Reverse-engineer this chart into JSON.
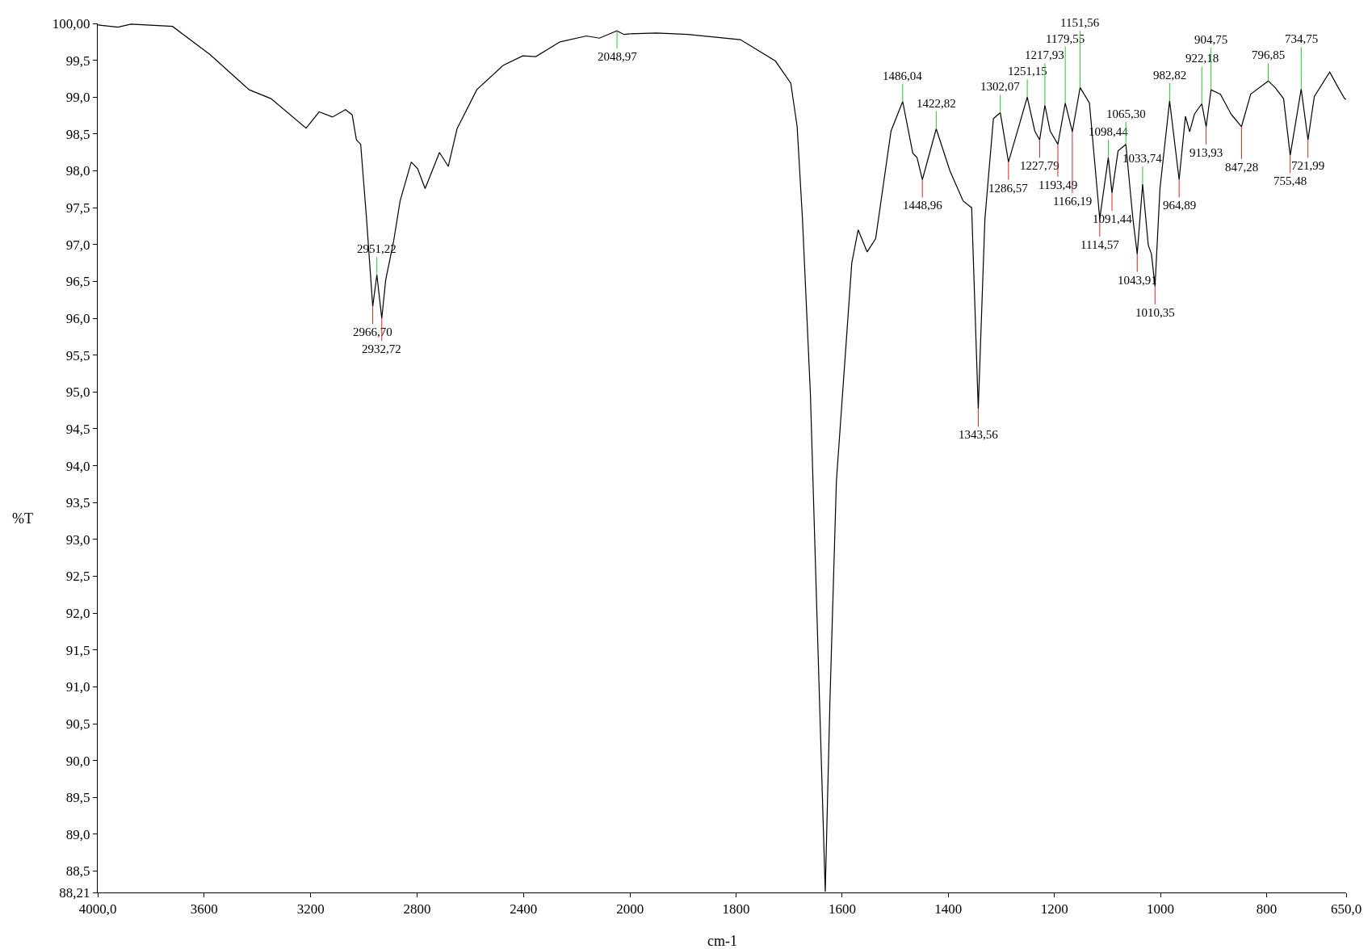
{
  "chart_data": [
    {
      "type": "line",
      "xlim": [
        4000,
        2000
      ],
      "ylim": [
        88.21,
        100
      ],
      "ylabel": "%T",
      "xticks": [
        {
          "value": 4000,
          "label": "4000,0"
        },
        3600,
        3200,
        2800,
        2400
      ],
      "yticks": [
        {
          "value": 88.21,
          "label": "88,21"
        },
        {
          "value": 88.5,
          "label": "88,5"
        },
        {
          "value": 89,
          "label": "89,0"
        },
        {
          "value": 89.5,
          "label": "89,5"
        },
        {
          "value": 90,
          "label": "90,0"
        },
        {
          "value": 90.5,
          "label": "90,5"
        },
        {
          "value": 91,
          "label": "91,0"
        },
        {
          "value": 91.5,
          "label": "91,5"
        },
        {
          "value": 92,
          "label": "92,0"
        },
        {
          "value": 92.5,
          "label": "92,5"
        },
        {
          "value": 93,
          "label": "93,0"
        },
        {
          "value": 93.5,
          "label": "93,5"
        },
        {
          "value": 94,
          "label": "94,0"
        },
        {
          "value": 94.5,
          "label": "94,5"
        },
        {
          "value": 95,
          "label": "95,0"
        },
        {
          "value": 95.5,
          "label": "95,5"
        },
        {
          "value": 96,
          "label": "96,0"
        },
        {
          "value": 96.5,
          "label": "96,5"
        },
        {
          "value": 97,
          "label": "97,0"
        },
        {
          "value": 97.5,
          "label": "97,5"
        },
        {
          "value": 98,
          "label": "98,0"
        },
        {
          "value": 98.5,
          "label": "98,5"
        },
        {
          "value": 99,
          "label": "99,0"
        },
        {
          "value": 99.5,
          "label": "99,5"
        },
        {
          "value": 100,
          "label": "100,00"
        }
      ],
      "series": [
        {
          "color": "#000000",
          "x": [
            4000,
            3924,
            3875,
            3719,
            3579,
            3431,
            3349,
            3217,
            3168,
            3118,
            3069,
            3044,
            3028,
            3012,
            2990,
            2966.7,
            2951.22,
            2932.72,
            2918,
            2888,
            2864,
            2822,
            2798,
            2770,
            2716,
            2683,
            2650,
            2576,
            2477,
            2403,
            2354,
            2263,
            2164,
            2115,
            2048.97,
            2023,
            2000
          ],
          "values": [
            99.98,
            99.95,
            99.99,
            99.96,
            99.58,
            99.1,
            98.98,
            98.58,
            98.8,
            98.73,
            98.83,
            98.76,
            98.42,
            98.36,
            97.35,
            96.16,
            96.59,
            96.0,
            96.52,
            97.05,
            97.59,
            98.12,
            98.03,
            97.76,
            98.25,
            98.06,
            98.57,
            99.1,
            99.43,
            99.56,
            99.55,
            99.75,
            99.83,
            99.8,
            99.9,
            99.85,
            99.86
          ]
        }
      ],
      "annotations": [
        {
          "text": "2966,70",
          "x": 2966.7,
          "y": 96.16
        },
        {
          "text": "2951,22",
          "x": 2951.22,
          "y": 96.59
        },
        {
          "text": "2932,72",
          "x": 2932.72,
          "y": 96.0
        },
        {
          "text": "2048,97",
          "x": 2048.97,
          "y": 99.9
        }
      ]
    },
    {
      "type": "line",
      "xlim": [
        2000,
        650
      ],
      "ylim": [
        88.21,
        100
      ],
      "tick_labels": "x",
      "xlabel": "cm-1",
      "xticks": [
        2000,
        1800,
        1600,
        1400,
        1200,
        1000,
        800,
        {
          "value": 650,
          "label": "650,0"
        }
      ],
      "series": [
        {
          "color": "#000000",
          "x": [
            2000,
            1950,
            1891,
            1792,
            1726,
            1697,
            1685,
            1675,
            1660,
            1643,
            1632,
            1623,
            1611,
            1582,
            1570,
            1553,
            1537,
            1508,
            1486.04,
            1467,
            1459,
            1448.96,
            1422.82,
            1397,
            1372,
            1356,
            1343.56,
            1331,
            1315,
            1302.07,
            1286.57,
            1251.15,
            1237,
            1227.79,
            1217.93,
            1208,
            1193.49,
            1179.55,
            1166.19,
            1151.56,
            1134,
            1114.57,
            1098.44,
            1091.44,
            1080,
            1065.3,
            1056,
            1052,
            1043.91,
            1033.74,
            1023,
            1017,
            1010.35,
            1001,
            982.82,
            964.89,
            953,
            945,
            936,
            922.18,
            913.93,
            904.75,
            887,
            867,
            847.28,
            830,
            796.85,
            784,
            768,
            755.48,
            734.75,
            721.99,
            710,
            681,
            665,
            653,
            650
          ],
          "values": [
            99.86,
            99.87,
            99.85,
            99.78,
            99.49,
            99.19,
            98.6,
            97.35,
            94.97,
            90.85,
            88.22,
            90.85,
            93.79,
            96.75,
            97.2,
            96.9,
            97.08,
            98.54,
            98.94,
            98.24,
            98.18,
            97.88,
            98.57,
            98.0,
            97.59,
            97.5,
            94.77,
            97.35,
            98.71,
            98.79,
            98.12,
            99.0,
            98.54,
            98.42,
            98.89,
            98.54,
            98.36,
            98.92,
            98.53,
            99.13,
            98.92,
            97.35,
            98.18,
            97.7,
            98.27,
            98.36,
            97.65,
            97.35,
            96.87,
            97.82,
            96.99,
            96.87,
            96.43,
            97.76,
            98.95,
            97.88,
            98.74,
            98.53,
            98.77,
            98.91,
            98.6,
            99.1,
            99.04,
            98.77,
            98.6,
            99.04,
            99.22,
            99.13,
            98.98,
            98.21,
            99.11,
            98.42,
            99.01,
            99.34,
            99.13,
            98.98,
            98.97
          ]
        }
      ],
      "annotations": [
        {
          "text": "1486,04",
          "x": 1486.04,
          "y": 98.94
        },
        {
          "text": "1448,96",
          "x": 1448.96,
          "y": 97.88
        },
        {
          "text": "1422,82",
          "x": 1422.82,
          "y": 98.57
        },
        {
          "text": "1343,56",
          "x": 1343.56,
          "y": 94.77
        },
        {
          "text": "1302,07",
          "x": 1302.07,
          "y": 98.79
        },
        {
          "text": "1286,57",
          "x": 1286.57,
          "y": 98.12
        },
        {
          "text": "1251,15",
          "x": 1251.15,
          "y": 99.0
        },
        {
          "text": "1227,79",
          "x": 1227.79,
          "y": 98.42
        },
        {
          "text": "1217,93",
          "x": 1217.93,
          "y": 98.89
        },
        {
          "text": "1193,49",
          "x": 1193.49,
          "y": 98.36
        },
        {
          "text": "1179,55",
          "x": 1179.55,
          "y": 98.92
        },
        {
          "text": "1166,19",
          "x": 1166.19,
          "y": 98.53
        },
        {
          "text": "1151,56",
          "x": 1151.56,
          "y": 99.13
        },
        {
          "text": "1114,57",
          "x": 1114.57,
          "y": 97.35
        },
        {
          "text": "1098,44",
          "x": 1098.44,
          "y": 98.18
        },
        {
          "text": "1091,44",
          "x": 1091.44,
          "y": 97.7
        },
        {
          "text": "1065,30",
          "x": 1065.3,
          "y": 98.36
        },
        {
          "text": "1043,91",
          "x": 1043.91,
          "y": 96.87
        },
        {
          "text": "1033,74",
          "x": 1033.74,
          "y": 97.82
        },
        {
          "text": "1010,35",
          "x": 1010.35,
          "y": 96.43
        },
        {
          "text": "982,82",
          "x": 982.82,
          "y": 98.95
        },
        {
          "text": "964,89",
          "x": 964.89,
          "y": 97.88
        },
        {
          "text": "922,18",
          "x": 922.18,
          "y": 98.91
        },
        {
          "text": "913,93",
          "x": 913.93,
          "y": 98.6
        },
        {
          "text": "904,75",
          "x": 904.75,
          "y": 99.1
        },
        {
          "text": "847,28",
          "x": 847.28,
          "y": 98.6
        },
        {
          "text": "796,85",
          "x": 796.85,
          "y": 99.22
        },
        {
          "text": "755,48",
          "x": 755.48,
          "y": 98.21
        },
        {
          "text": "734,75",
          "x": 734.75,
          "y": 99.11
        },
        {
          "text": "721,99",
          "x": 721.99,
          "y": 98.42
        }
      ]
    }
  ]
}
